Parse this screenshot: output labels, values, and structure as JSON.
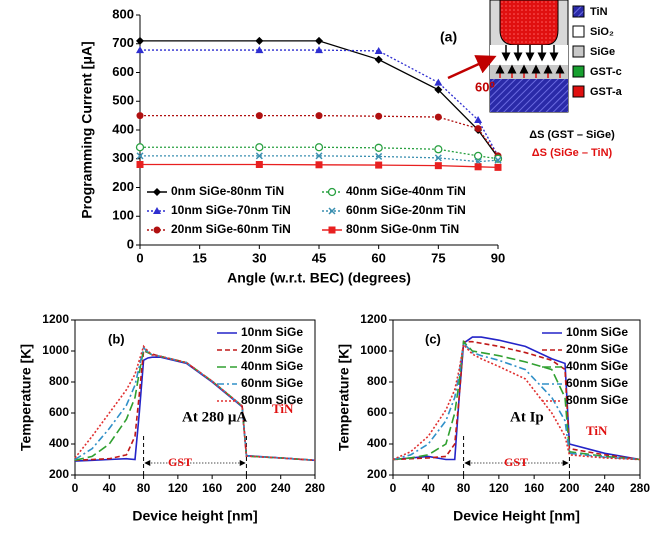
{
  "chart_data": [
    {
      "type": "line",
      "y_label": "Programming Current [μA]",
      "x_label": "Angle (w.r.t. BEC) (degrees)",
      "x": [
        0,
        30,
        45,
        60,
        75,
        85,
        90
      ],
      "xlim": [
        0,
        90
      ],
      "xticks": [
        0,
        15,
        30,
        45,
        60,
        75,
        90
      ],
      "ylim": [
        0,
        800
      ],
      "yticks": [
        0,
        100,
        200,
        300,
        400,
        500,
        600,
        700,
        800
      ],
      "series": [
        {
          "name": "0nm SiGe-80nm TiN",
          "color": "#000000",
          "dash": "solid",
          "marker": "diamond",
          "values": [
            710,
            710,
            710,
            645,
            540,
            400,
            305
          ]
        },
        {
          "name": "10nm SiGe-70nm TiN",
          "color": "#2f2fd0",
          "dash": "dotted",
          "marker": "triangle",
          "values": [
            678,
            678,
            678,
            675,
            565,
            435,
            310
          ]
        },
        {
          "name": "20nm SiGe-60nm TiN",
          "color": "#b01010",
          "dash": "dotted",
          "marker": "circle",
          "values": [
            450,
            450,
            450,
            448,
            445,
            405,
            310
          ]
        },
        {
          "name": "40nm SiGe-40nm TiN",
          "color": "#28a040",
          "dash": "dotted",
          "marker": "circle-open",
          "values": [
            340,
            340,
            340,
            338,
            333,
            310,
            300
          ]
        },
        {
          "name": "60nm SiGe-20nm TiN",
          "color": "#3a8fb0",
          "dash": "dotted",
          "marker": "x",
          "values": [
            310,
            310,
            310,
            308,
            303,
            290,
            295
          ]
        },
        {
          "name": "80nm SiGe-0nm TiN",
          "color": "#e82020",
          "dash": "solid",
          "marker": "square",
          "values": [
            280,
            280,
            279,
            278,
            276,
            272,
            270
          ]
        }
      ],
      "annotations": [
        "(a)",
        "60⁰",
        "ΔS (GST – SiGe)",
        "ΔS (SiGe – TiN)"
      ],
      "inset_labels": [
        "TiN",
        "SiO₂",
        "SiGe",
        "GST-c",
        "GST-a"
      ]
    },
    {
      "type": "line",
      "y_label": "Temperature [K]",
      "x_label": "Device height [nm]",
      "x": [
        0,
        20,
        40,
        60,
        70,
        75,
        80,
        85,
        90,
        100,
        130,
        160,
        195,
        200,
        240,
        280
      ],
      "xlim": [
        0,
        280
      ],
      "xticks": [
        0,
        40,
        80,
        120,
        160,
        200,
        240,
        280
      ],
      "ylim": [
        200,
        1200
      ],
      "yticks": [
        200,
        400,
        600,
        800,
        1000,
        1200
      ],
      "series": [
        {
          "name": "10nm SiGe",
          "color": "#2424c8",
          "dash": "solid",
          "values": [
            290,
            295,
            300,
            305,
            300,
            600,
            940,
            955,
            960,
            960,
            920,
            800,
            640,
            325,
            310,
            295
          ]
        },
        {
          "name": "20nm SiGe",
          "color": "#c01818",
          "dash": "dashed",
          "values": [
            295,
            300,
            305,
            330,
            450,
            720,
            1000,
            990,
            980,
            965,
            925,
            805,
            645,
            322,
            310,
            295
          ]
        },
        {
          "name": "40nm SiGe",
          "color": "#30a030",
          "dash": "longdash",
          "values": [
            295,
            320,
            400,
            560,
            700,
            860,
            1010,
            990,
            975,
            965,
            925,
            805,
            645,
            322,
            310,
            295
          ]
        },
        {
          "name": "60nm SiGe",
          "color": "#3090c8",
          "dash": "dashdot",
          "values": [
            300,
            370,
            500,
            650,
            780,
            900,
            1020,
            995,
            975,
            965,
            925,
            805,
            645,
            322,
            310,
            295
          ]
        },
        {
          "name": "80nm SiGe",
          "color": "#e03030",
          "dash": "dotted",
          "values": [
            310,
            450,
            600,
            750,
            850,
            940,
            1030,
            1000,
            975,
            965,
            925,
            805,
            645,
            322,
            310,
            295
          ]
        }
      ],
      "annotations": [
        "(b)",
        "At 280 μA",
        "TiN",
        "GST"
      ]
    },
    {
      "type": "line",
      "y_label": "Temperature [K]",
      "x_label": "Device Height [nm]",
      "x": [
        0,
        20,
        40,
        60,
        70,
        75,
        80,
        90,
        100,
        120,
        150,
        180,
        195,
        200,
        240,
        280
      ],
      "xlim": [
        0,
        280
      ],
      "xticks": [
        0,
        40,
        80,
        120,
        160,
        200,
        240,
        280
      ],
      "ylim": [
        200,
        1200
      ],
      "yticks": [
        200,
        400,
        600,
        800,
        1000,
        1200
      ],
      "series": [
        {
          "name": "10nm SiGe",
          "color": "#2424c8",
          "dash": "solid",
          "values": [
            300,
            310,
            320,
            300,
            300,
            700,
            1050,
            1090,
            1090,
            1070,
            1030,
            950,
            920,
            400,
            340,
            300
          ]
        },
        {
          "name": "20nm SiGe",
          "color": "#c01818",
          "dash": "dashed",
          "values": [
            300,
            305,
            310,
            320,
            400,
            700,
            1060,
            1060,
            1050,
            1030,
            990,
            940,
            880,
            370,
            330,
            300
          ]
        },
        {
          "name": "40nm SiGe",
          "color": "#30a030",
          "dash": "longdash",
          "values": [
            300,
            310,
            330,
            400,
            600,
            800,
            1060,
            1000,
            990,
            970,
            930,
            880,
            700,
            350,
            320,
            300
          ]
        },
        {
          "name": "60nm SiGe",
          "color": "#3090c8",
          "dash": "dashdot",
          "values": [
            300,
            330,
            400,
            550,
            700,
            850,
            1050,
            990,
            970,
            940,
            880,
            700,
            550,
            340,
            315,
            300
          ]
        },
        {
          "name": "80nm SiGe",
          "color": "#e03030",
          "dash": "dotted",
          "values": [
            300,
            350,
            450,
            620,
            750,
            880,
            1040,
            980,
            950,
            900,
            820,
            600,
            450,
            330,
            310,
            300
          ]
        }
      ],
      "annotations": [
        "(c)",
        "At Ip",
        "TiN",
        "GST"
      ]
    }
  ]
}
